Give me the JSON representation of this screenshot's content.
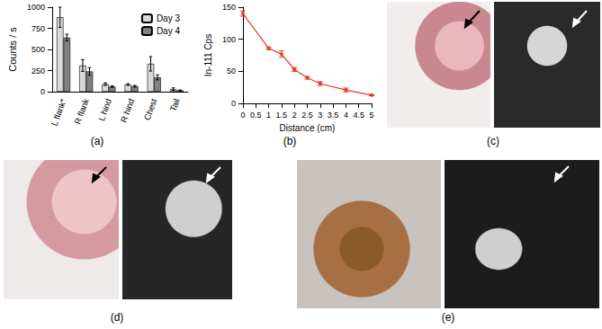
{
  "chart_data": [
    {
      "type": "bar",
      "categories": [
        "L flank*",
        "R flank",
        "L hind",
        "R hind",
        "Chest",
        "Tail"
      ],
      "series": [
        {
          "name": "Day 3",
          "color": "#d9d9d9",
          "values": [
            880,
            310,
            90,
            85,
            330,
            30
          ],
          "errors": [
            120,
            70,
            15,
            10,
            85,
            15
          ]
        },
        {
          "name": "Day 4",
          "color": "#808080",
          "values": [
            640,
            240,
            60,
            65,
            170,
            15
          ],
          "errors": [
            40,
            45,
            10,
            10,
            30,
            5
          ]
        }
      ],
      "ylabel": "Counts / s",
      "ylim": [
        0,
        1000
      ],
      "yticks": [
        0,
        250,
        500,
        750,
        1000
      ],
      "grid": false,
      "legend": "upper right"
    },
    {
      "type": "line",
      "x": [
        0,
        1,
        1.5,
        2,
        2.5,
        3,
        4,
        5
      ],
      "values": [
        140,
        86,
        77,
        53,
        40,
        31,
        21,
        13
      ],
      "errors": [
        4,
        2,
        5,
        3,
        2,
        3,
        3,
        1
      ],
      "color": "#e8392b",
      "marker": "circle",
      "line_style": "solid",
      "xlabel": "Distance (cm)",
      "ylabel": "In-111 Cps",
      "xlim": [
        0,
        5
      ],
      "xticks": [
        0,
        0.5,
        1,
        1.5,
        2,
        2.5,
        3,
        3.5,
        4,
        4.5,
        5
      ],
      "ylim": [
        0,
        150
      ],
      "yticks": [
        0,
        50,
        100,
        150
      ],
      "grid": false
    }
  ],
  "panel_labels": [
    "(a)",
    "(b)",
    "(c)",
    "(d)",
    "(e)"
  ]
}
